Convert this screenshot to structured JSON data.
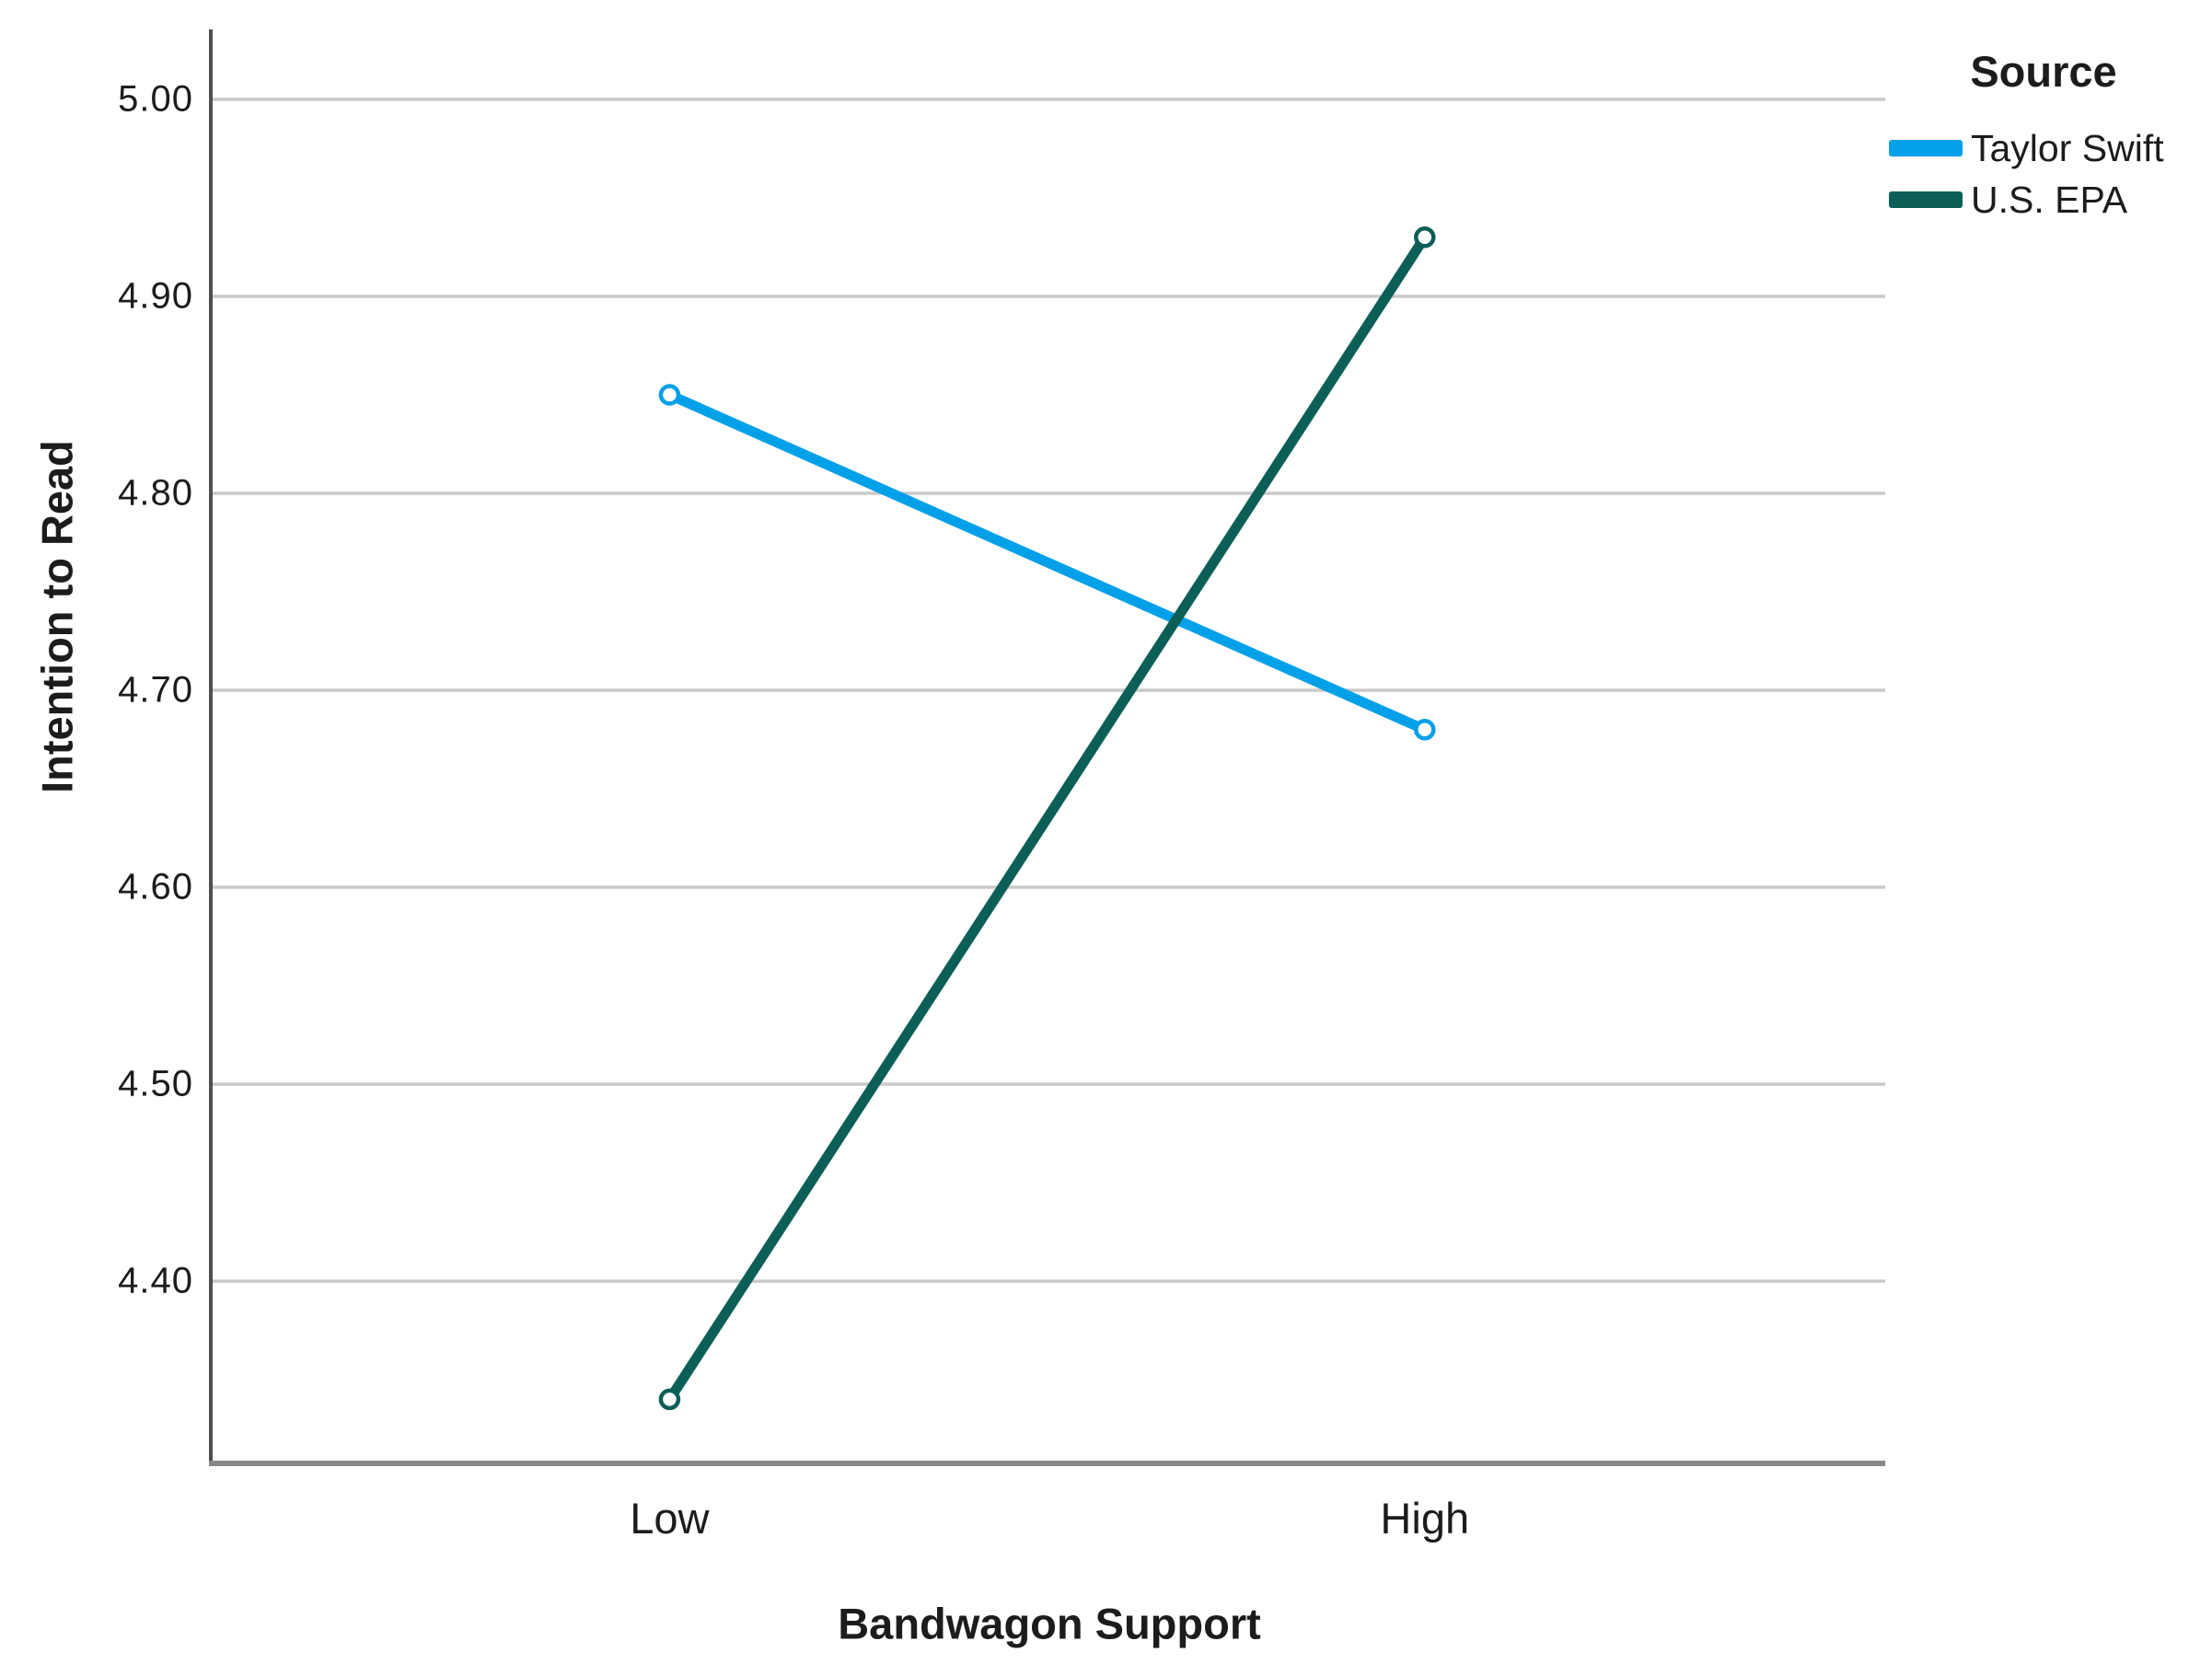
{
  "chart_data": {
    "type": "line",
    "title": "",
    "xlabel": "Bandwagon Support",
    "ylabel": "Intention to Read",
    "categories": [
      "Low",
      "High"
    ],
    "series": [
      {
        "name": "Taylor Swift",
        "color": "#02A0E8",
        "values": [
          4.85,
          4.68
        ]
      },
      {
        "name": "U.S. EPA",
        "color": "#0C5F57",
        "values": [
          4.34,
          4.93
        ]
      }
    ],
    "yticks": [
      {
        "value": 5.0,
        "label": "5.00"
      },
      {
        "value": 4.9,
        "label": "4.90"
      },
      {
        "value": 4.8,
        "label": "4.80"
      },
      {
        "value": 4.7,
        "label": "4.70"
      },
      {
        "value": 4.6,
        "label": "4.60"
      },
      {
        "value": 4.5,
        "label": "4.50"
      },
      {
        "value": 4.4,
        "label": "4.40"
      }
    ],
    "ylim": [
      4.31,
      5.04
    ],
    "grid": "horizontal",
    "marker": "open-circle",
    "legend": {
      "title": "Source",
      "position": "top-right-outside"
    }
  },
  "colors": {
    "background": "#ffffff",
    "gridline": "#c9c9c9",
    "y_axis": "#4f4f4f",
    "x_axis": "#888888",
    "text": "#1c1c1c",
    "marker_fill": "#ffffff"
  }
}
